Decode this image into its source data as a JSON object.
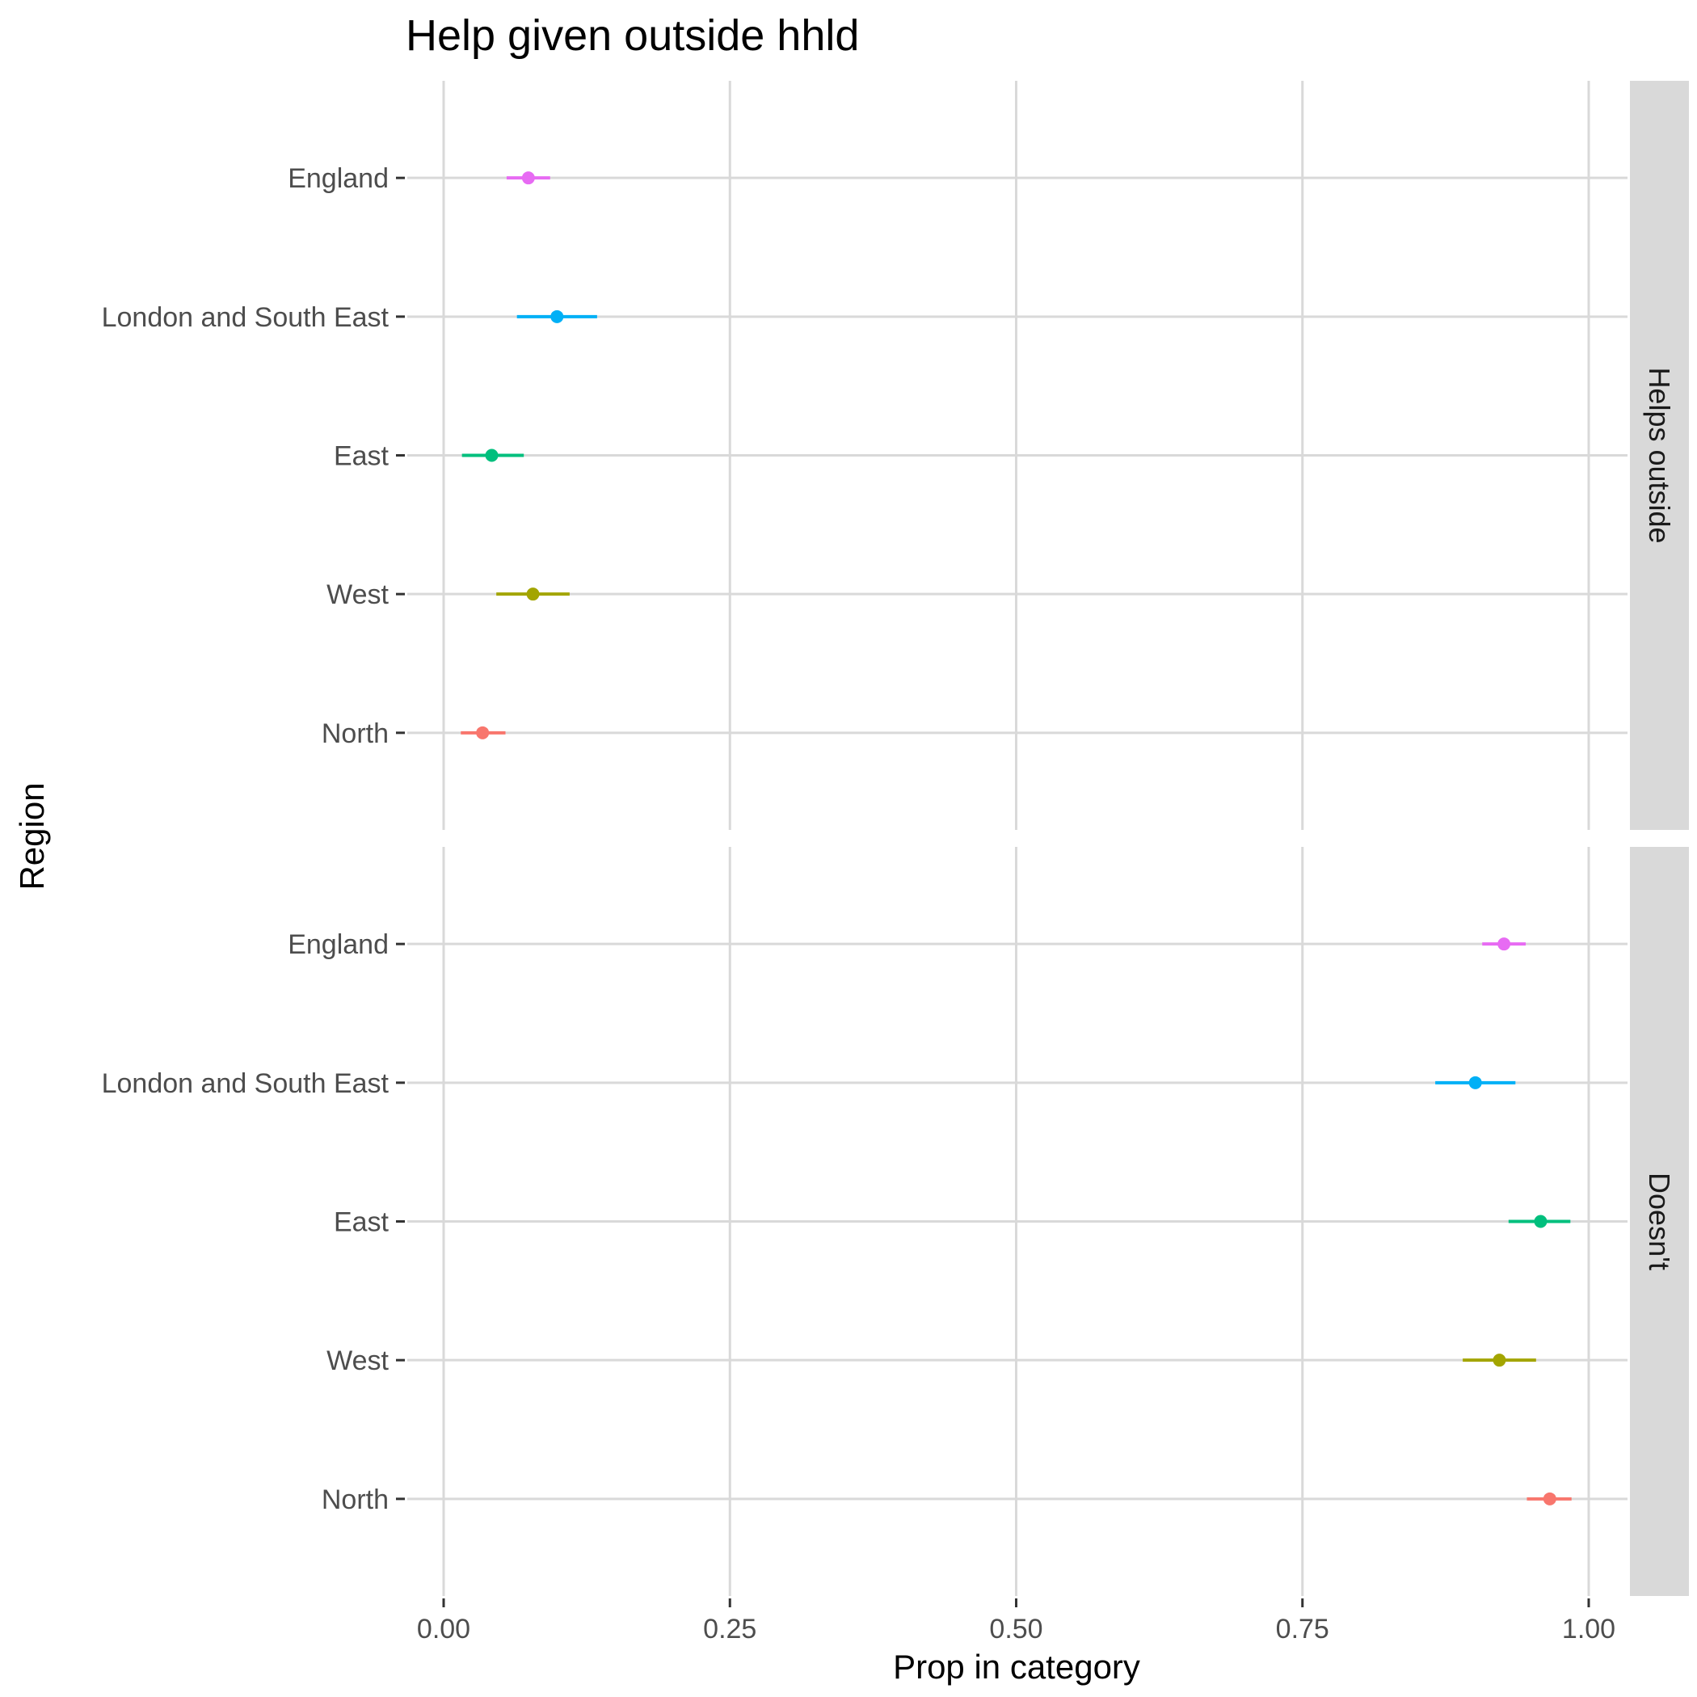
{
  "chart_data": {
    "type": "scatter",
    "title": "Help given outside hhld",
    "xlabel": "Prop in category",
    "ylabel": "Region",
    "xlim": [
      0,
      1
    ],
    "x_ticks": [
      "0.00",
      "0.25",
      "0.50",
      "0.75",
      "1.00"
    ],
    "categories": [
      "England",
      "London and South East",
      "East",
      "West",
      "North"
    ],
    "grid": true,
    "legend": "none",
    "panels": [
      {
        "label": "Helps outside",
        "points": [
          {
            "region": "England",
            "value": 0.074,
            "low": 0.055,
            "high": 0.093,
            "color": "#e76bf3"
          },
          {
            "region": "London and South East",
            "value": 0.099,
            "low": 0.064,
            "high": 0.134,
            "color": "#00b0f6"
          },
          {
            "region": "East",
            "value": 0.042,
            "low": 0.016,
            "high": 0.07,
            "color": "#00bf7d"
          },
          {
            "region": "West",
            "value": 0.078,
            "low": 0.046,
            "high": 0.11,
            "color": "#a3a500"
          },
          {
            "region": "North",
            "value": 0.034,
            "low": 0.015,
            "high": 0.054,
            "color": "#f8766d"
          }
        ]
      },
      {
        "label": "Doesn't",
        "points": [
          {
            "region": "England",
            "value": 0.926,
            "low": 0.907,
            "high": 0.945,
            "color": "#e76bf3"
          },
          {
            "region": "London and South East",
            "value": 0.901,
            "low": 0.866,
            "high": 0.936,
            "color": "#00b0f6"
          },
          {
            "region": "East",
            "value": 0.958,
            "low": 0.93,
            "high": 0.984,
            "color": "#00bf7d"
          },
          {
            "region": "West",
            "value": 0.922,
            "low": 0.89,
            "high": 0.954,
            "color": "#a3a500"
          },
          {
            "region": "North",
            "value": 0.966,
            "low": 0.946,
            "high": 0.985,
            "color": "#f8766d"
          }
        ]
      }
    ]
  }
}
